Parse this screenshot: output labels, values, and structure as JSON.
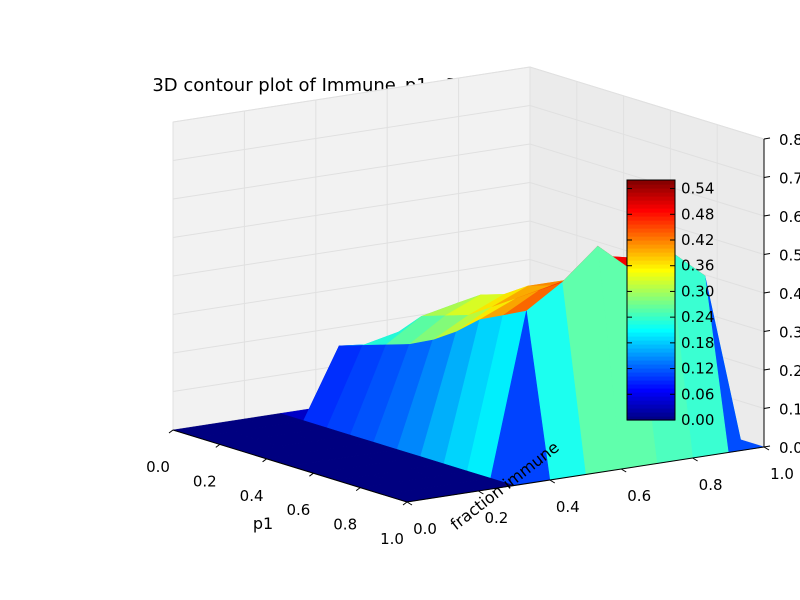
{
  "chart_data": {
    "type": "surface3d",
    "title": "3D contour plot of Immune_p1-p3_variance",
    "xlabel": "p1",
    "ylabel": "fraction immune",
    "zlabel": "",
    "xlim": [
      0.0,
      1.0
    ],
    "ylim": [
      0.0,
      1.0
    ],
    "zlim": [
      0.0,
      0.8
    ],
    "x_ticks": [
      "0.0",
      "0.2",
      "0.4",
      "0.6",
      "0.8",
      "1.0"
    ],
    "y_ticks": [
      "0.0",
      "0.2",
      "0.4",
      "0.6",
      "0.8",
      "1.0"
    ],
    "z_ticks": [
      "0.0",
      "0.1",
      "0.2",
      "0.3",
      "0.4",
      "0.5",
      "0.6",
      "0.7",
      "0.8"
    ],
    "colormap": "jet",
    "colorbar": {
      "range": [
        0.0,
        0.56
      ],
      "ticks": [
        "0.00",
        "0.06",
        "0.12",
        "0.18",
        "0.24",
        "0.30",
        "0.36",
        "0.42",
        "0.48",
        "0.54"
      ]
    },
    "x": [
      0.0,
      0.1,
      0.2,
      0.3,
      0.4,
      0.5,
      0.6,
      0.7,
      0.8,
      0.9,
      1.0
    ],
    "y": [
      0.0,
      0.1,
      0.2,
      0.3,
      0.4,
      0.5,
      0.6,
      0.7,
      0.8,
      0.9,
      1.0
    ],
    "z": [
      [
        0,
        0,
        0,
        0,
        0,
        0,
        0,
        0,
        0,
        0,
        0
      ],
      [
        0,
        0,
        0,
        0,
        0,
        0,
        0,
        0,
        0,
        0,
        0
      ],
      [
        0,
        0,
        0,
        0,
        0,
        0,
        0,
        0,
        0,
        0,
        0
      ],
      [
        0,
        0,
        0,
        0,
        0,
        0,
        0,
        0,
        0,
        0,
        0
      ],
      [
        0,
        0.18,
        0.2,
        0.22,
        0.24,
        0.27,
        0.31,
        0.36,
        0.39,
        0.42,
        0
      ],
      [
        0,
        0.17,
        0.22,
        0.28,
        0.3,
        0.32,
        0.36,
        0.4,
        0.44,
        0.48,
        0
      ],
      [
        0,
        0.16,
        0.2,
        0.3,
        0.34,
        0.36,
        0.4,
        0.42,
        0.46,
        0.56,
        0
      ],
      [
        0,
        0.17,
        0.22,
        0.28,
        0.32,
        0.36,
        0.4,
        0.44,
        0.5,
        0.48,
        0
      ],
      [
        0,
        0.19,
        0.24,
        0.26,
        0.3,
        0.33,
        0.38,
        0.42,
        0.48,
        0.52,
        0
      ],
      [
        0,
        0.18,
        0.21,
        0.24,
        0.33,
        0.37,
        0.4,
        0.44,
        0.42,
        0.44,
        0
      ],
      [
        0,
        0,
        0,
        0,
        0,
        0,
        0,
        0,
        0,
        0,
        0
      ]
    ]
  }
}
